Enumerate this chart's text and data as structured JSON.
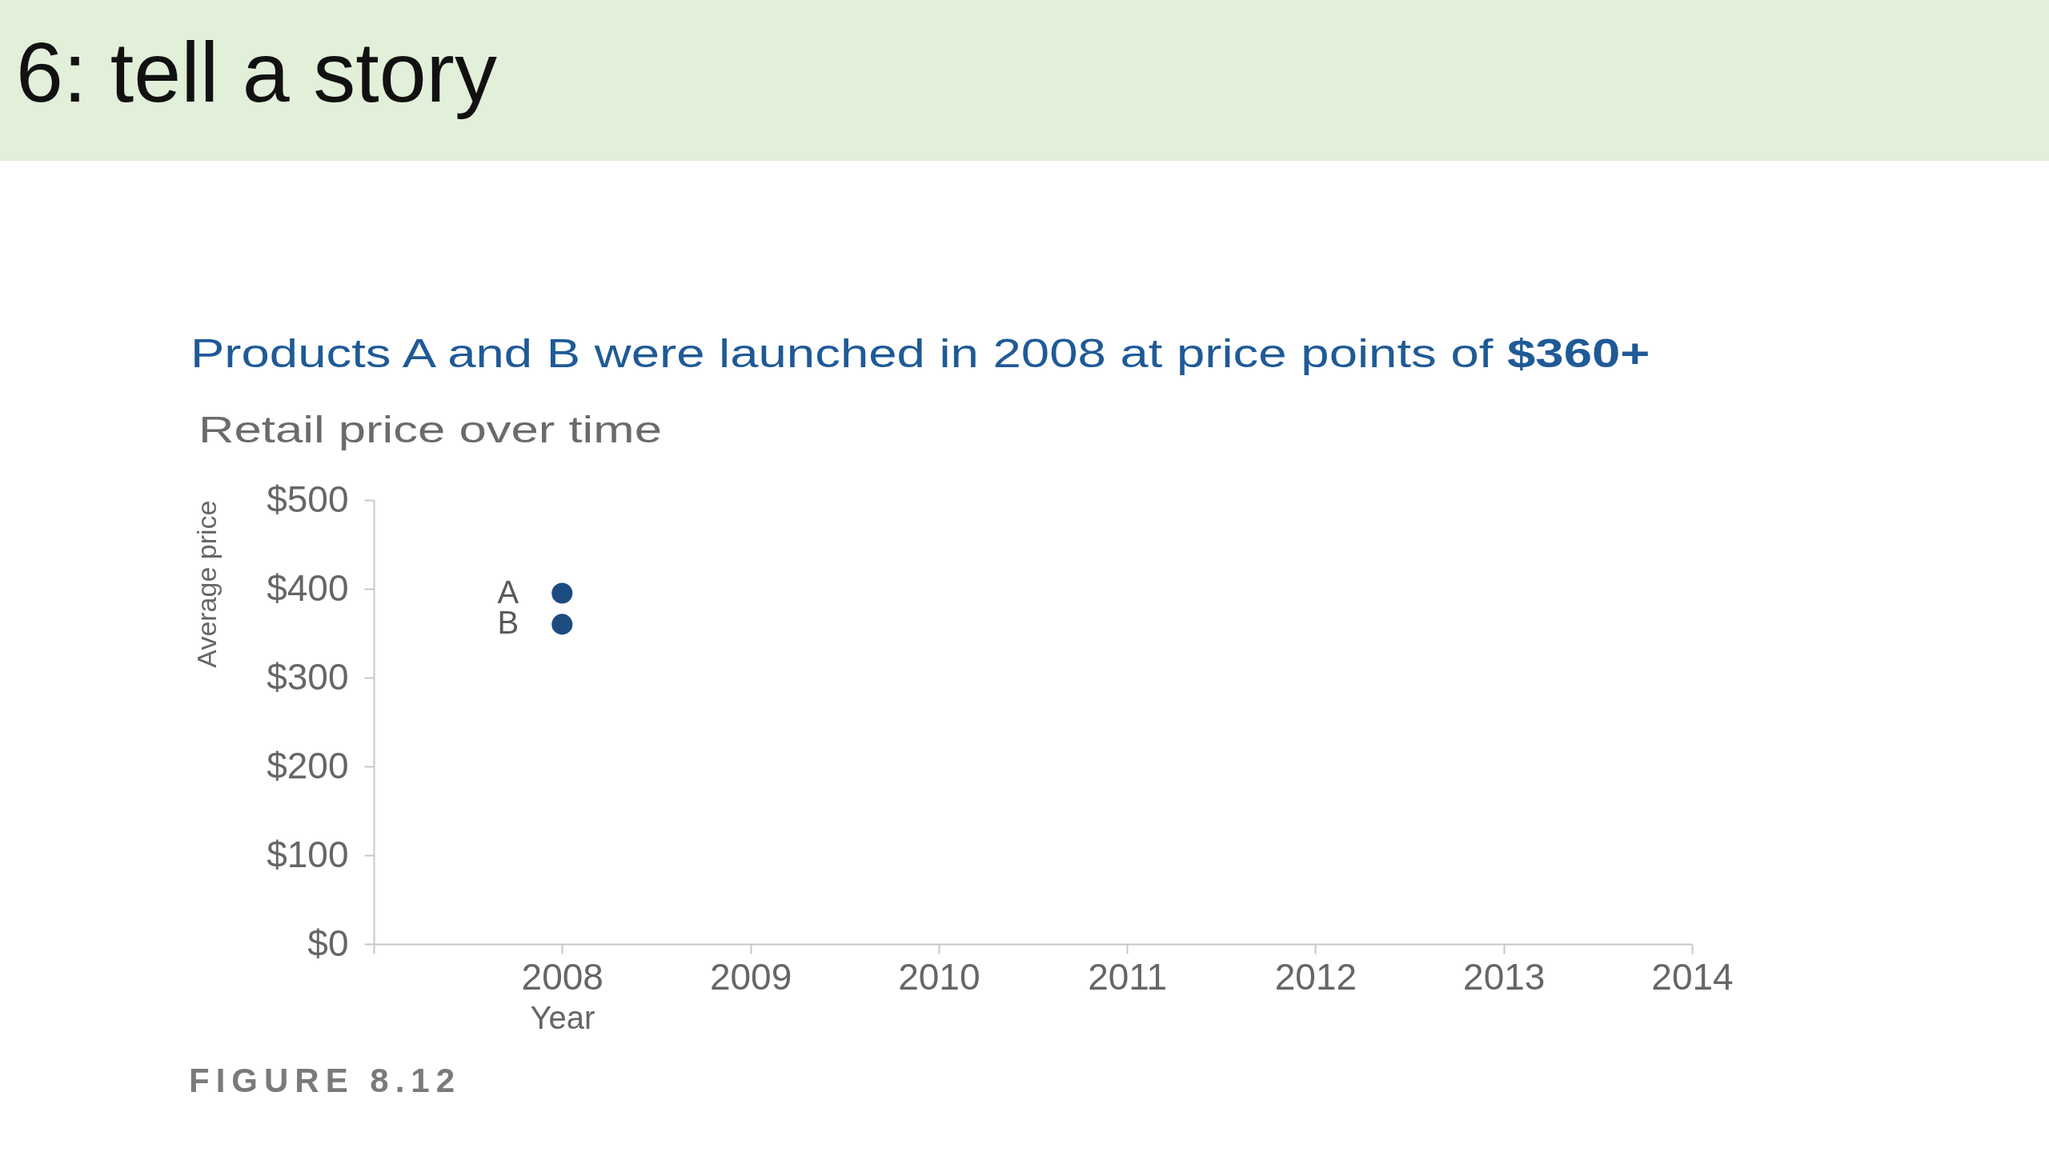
{
  "chart_data": {
    "type": "scatter",
    "title": "Products A and B were launched in 2008 at price points of $360+",
    "subtitle": "Retail price over time",
    "xlabel": "Year",
    "ylabel": "Average price",
    "annotations": [
      "6: tell a story",
      "FIGURE 8.12"
    ],
    "x": [
      2008
    ],
    "series": [
      {
        "name": "A",
        "color": "#1c4b80",
        "values": [
          395
        ]
      },
      {
        "name": "B",
        "color": "#1c4b80",
        "values": [
          360
        ]
      }
    ],
    "xlim": [
      2007,
      2014
    ],
    "xticks": [
      {
        "value": 2007,
        "label": null
      },
      2008,
      2009,
      2010,
      2011,
      2012,
      2013,
      2014
    ],
    "ylim": [
      0,
      500
    ],
    "yticks": [
      {
        "value": 0,
        "label": "$0"
      },
      {
        "value": 100,
        "label": "$100"
      },
      {
        "value": 200,
        "label": "$200"
      },
      {
        "value": 300,
        "label": "$300"
      },
      {
        "value": 400,
        "label": "$400"
      },
      {
        "value": 500,
        "label": "$500"
      }
    ],
    "marker": "circle"
  }
}
